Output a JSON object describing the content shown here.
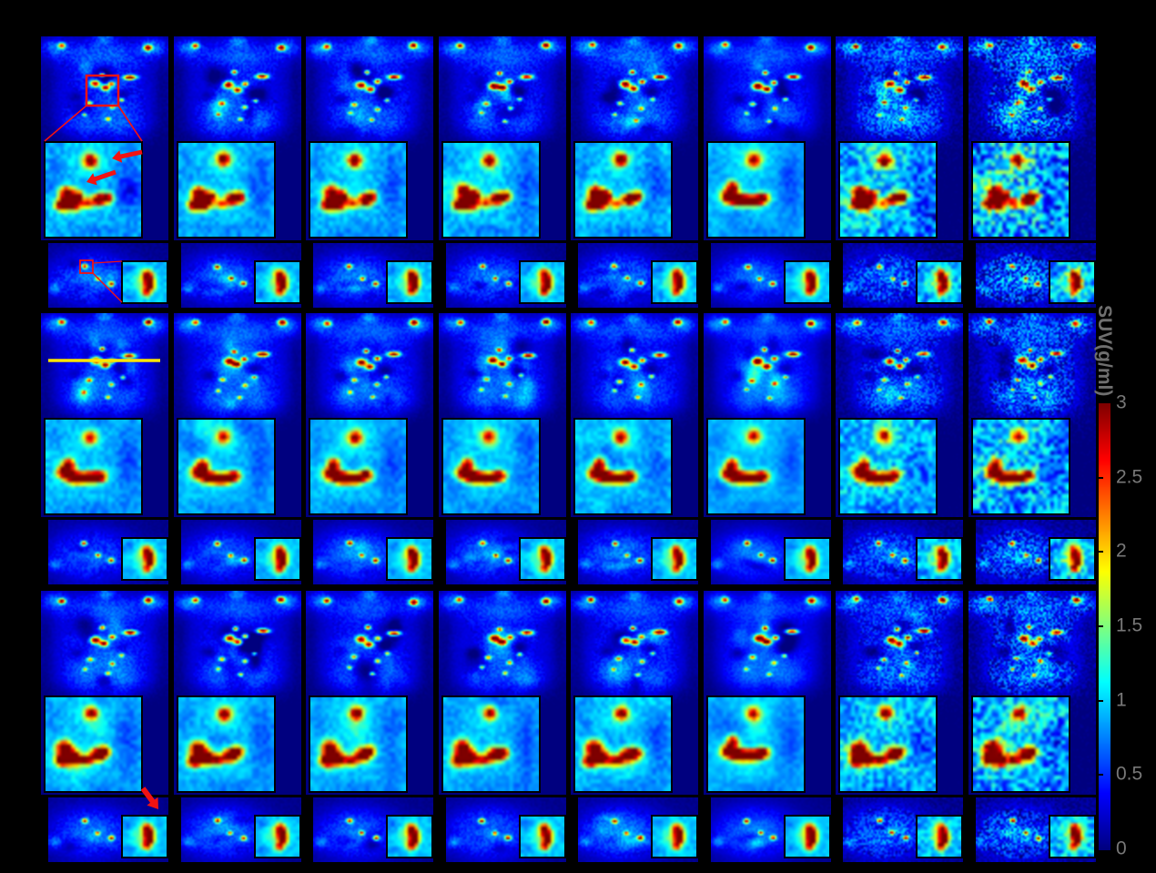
{
  "figure": {
    "grid": {
      "rows": 3,
      "columns": 8,
      "panel_count": 24
    },
    "panel_parts": [
      "coronal-pet-image",
      "lesion-zoom-inset",
      "axial-pet-image",
      "axial-zoom-inset"
    ],
    "background_color": "#000000",
    "colormap": "jet",
    "annotation_colors": {
      "roi": "#f21212",
      "profile_line": "#ffe600"
    },
    "annotations": [
      {
        "panel": "row1-col1",
        "items": [
          "coronal-roi-box",
          "zoom-connector-lines",
          "two-red-arrows-in-inset",
          "axial-roi-box",
          "axial-inset-connector-lines"
        ]
      },
      {
        "panel": "row2-col1",
        "items": [
          "yellow-profile-line-on-coronal"
        ]
      },
      {
        "panel": "row3-col1",
        "items": [
          "red-arrow-at-axial-inset"
        ]
      }
    ]
  },
  "colorbar": {
    "title": "SUV(g/ml)",
    "min": 0,
    "max": 3,
    "tick_labels": [
      "3",
      "2.5",
      "2",
      "1.5",
      "1",
      "0.5",
      "0"
    ],
    "label_color": "#787878",
    "title_color": "#6f6f6f",
    "colormap": "jet"
  }
}
